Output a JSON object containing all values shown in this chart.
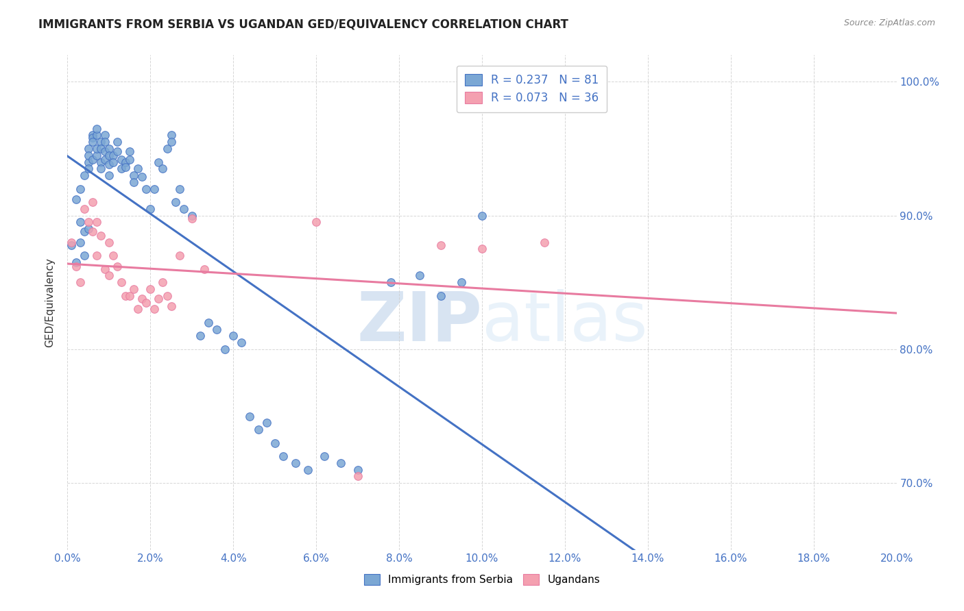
{
  "title": "IMMIGRANTS FROM SERBIA VS UGANDAN GED/EQUIVALENCY CORRELATION CHART",
  "source": "Source: ZipAtlas.com",
  "ylabel": "GED/Equivalency",
  "legend1_label": "Immigrants from Serbia",
  "legend2_label": "Ugandans",
  "r1": "0.237",
  "n1": "81",
  "r2": "0.073",
  "n2": "36",
  "series1_color": "#7BA7D4",
  "series2_color": "#F4A0B0",
  "line1_color": "#4472C4",
  "line2_color": "#E87BA0",
  "serbia_x": [
    0.001,
    0.002,
    0.002,
    0.003,
    0.003,
    0.003,
    0.004,
    0.004,
    0.004,
    0.005,
    0.005,
    0.005,
    0.005,
    0.005,
    0.006,
    0.006,
    0.006,
    0.006,
    0.007,
    0.007,
    0.007,
    0.007,
    0.008,
    0.008,
    0.008,
    0.008,
    0.009,
    0.009,
    0.009,
    0.009,
    0.01,
    0.01,
    0.01,
    0.01,
    0.011,
    0.011,
    0.012,
    0.012,
    0.013,
    0.013,
    0.014,
    0.014,
    0.015,
    0.015,
    0.016,
    0.016,
    0.017,
    0.018,
    0.019,
    0.02,
    0.021,
    0.022,
    0.023,
    0.024,
    0.025,
    0.025,
    0.026,
    0.027,
    0.028,
    0.03,
    0.032,
    0.034,
    0.036,
    0.038,
    0.04,
    0.042,
    0.044,
    0.046,
    0.048,
    0.05,
    0.052,
    0.055,
    0.058,
    0.062,
    0.066,
    0.07,
    0.078,
    0.085,
    0.09,
    0.095,
    0.1
  ],
  "serbia_y": [
    0.878,
    0.865,
    0.912,
    0.92,
    0.895,
    0.88,
    0.87,
    0.888,
    0.93,
    0.94,
    0.95,
    0.945,
    0.935,
    0.89,
    0.96,
    0.958,
    0.955,
    0.942,
    0.945,
    0.95,
    0.96,
    0.965,
    0.955,
    0.95,
    0.94,
    0.935,
    0.96,
    0.955,
    0.948,
    0.942,
    0.95,
    0.945,
    0.938,
    0.93,
    0.945,
    0.94,
    0.948,
    0.955,
    0.942,
    0.935,
    0.94,
    0.936,
    0.948,
    0.942,
    0.93,
    0.925,
    0.935,
    0.929,
    0.92,
    0.905,
    0.92,
    0.94,
    0.935,
    0.95,
    0.96,
    0.955,
    0.91,
    0.92,
    0.905,
    0.9,
    0.81,
    0.82,
    0.815,
    0.8,
    0.81,
    0.805,
    0.75,
    0.74,
    0.745,
    0.73,
    0.72,
    0.715,
    0.71,
    0.72,
    0.715,
    0.71,
    0.85,
    0.855,
    0.84,
    0.85,
    0.9
  ],
  "uganda_x": [
    0.001,
    0.002,
    0.003,
    0.004,
    0.005,
    0.006,
    0.006,
    0.007,
    0.007,
    0.008,
    0.009,
    0.01,
    0.01,
    0.011,
    0.012,
    0.013,
    0.014,
    0.015,
    0.016,
    0.017,
    0.018,
    0.019,
    0.02,
    0.021,
    0.022,
    0.023,
    0.024,
    0.025,
    0.027,
    0.03,
    0.033,
    0.06,
    0.07,
    0.09,
    0.1,
    0.115
  ],
  "uganda_y": [
    0.88,
    0.862,
    0.85,
    0.905,
    0.895,
    0.91,
    0.888,
    0.895,
    0.87,
    0.885,
    0.86,
    0.88,
    0.855,
    0.87,
    0.862,
    0.85,
    0.84,
    0.84,
    0.845,
    0.83,
    0.838,
    0.835,
    0.845,
    0.83,
    0.838,
    0.85,
    0.84,
    0.832,
    0.87,
    0.898,
    0.86,
    0.895,
    0.705,
    0.878,
    0.875,
    0.88
  ],
  "xmin": 0.0,
  "xmax": 0.2,
  "ymin": 0.65,
  "ymax": 1.02,
  "y_tick_vals": [
    0.7,
    0.8,
    0.9,
    1.0
  ],
  "y_tick_labels": [
    "70.0%",
    "80.0%",
    "90.0%",
    "100.0%"
  ],
  "background_color": "#ffffff"
}
